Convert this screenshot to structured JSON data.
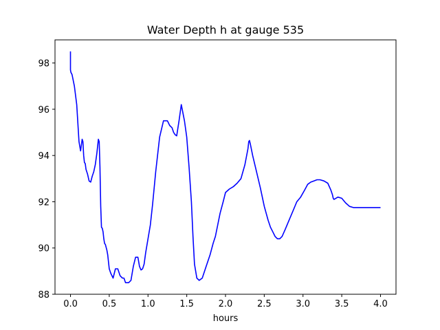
{
  "chart_data": {
    "type": "line",
    "title": "Water Depth h at gauge 535",
    "xlabel": "hours",
    "ylabel": "",
    "xlim": [
      -0.2,
      4.2
    ],
    "ylim": [
      88,
      99
    ],
    "xticks": [
      0.0,
      0.5,
      1.0,
      1.5,
      2.0,
      2.5,
      3.0,
      3.5,
      4.0
    ],
    "xtick_labels": [
      "0.0",
      "0.5",
      "1.0",
      "1.5",
      "2.0",
      "2.5",
      "3.0",
      "3.5",
      "4.0"
    ],
    "yticks": [
      88,
      90,
      92,
      94,
      96,
      98
    ],
    "ytick_labels": [
      "88",
      "90",
      "92",
      "94",
      "96",
      "98"
    ],
    "grid": false,
    "series": [
      {
        "color": "#0000ff",
        "x": [
          0.0,
          0.0,
          0.005,
          0.02,
          0.05,
          0.08,
          0.11,
          0.13,
          0.15,
          0.16,
          0.17,
          0.18,
          0.19,
          0.2,
          0.21,
          0.22,
          0.24,
          0.26,
          0.28,
          0.3,
          0.32,
          0.34,
          0.36,
          0.37,
          0.38,
          0.39,
          0.4,
          0.41,
          0.42,
          0.43,
          0.44,
          0.45,
          0.47,
          0.48,
          0.49,
          0.5,
          0.52,
          0.55,
          0.58,
          0.61,
          0.64,
          0.67,
          0.69,
          0.71,
          0.73,
          0.75,
          0.78,
          0.81,
          0.84,
          0.87,
          0.89,
          0.91,
          0.93,
          0.95,
          0.97,
          1.0,
          1.03,
          1.06,
          1.1,
          1.15,
          1.2,
          1.25,
          1.28,
          1.31,
          1.33,
          1.35,
          1.37,
          1.4,
          1.43,
          1.47,
          1.5,
          1.53,
          1.56,
          1.58,
          1.6,
          1.63,
          1.66,
          1.7,
          1.75,
          1.8,
          1.84,
          1.87,
          1.9,
          1.93,
          1.97,
          2.0,
          2.05,
          2.1,
          2.15,
          2.2,
          2.25,
          2.29,
          2.3,
          2.31,
          2.32,
          2.35,
          2.4,
          2.45,
          2.5,
          2.55,
          2.58,
          2.61,
          2.64,
          2.67,
          2.7,
          2.73,
          2.77,
          2.82,
          2.87,
          2.92,
          2.97,
          3.02,
          3.06,
          3.1,
          3.14,
          3.18,
          3.22,
          3.27,
          3.32,
          3.36,
          3.38,
          3.39,
          3.4,
          3.45,
          3.5,
          3.55,
          3.6,
          3.65,
          3.7,
          3.75,
          3.8,
          3.85,
          3.87,
          3.875,
          3.88,
          3.9,
          3.95,
          3.98,
          4.0
        ],
        "y": [
          98.5,
          97.7,
          97.6,
          97.5,
          97.0,
          96.2,
          94.6,
          94.2,
          94.7,
          94.6,
          94.0,
          93.7,
          93.65,
          93.4,
          93.3,
          93.2,
          92.9,
          92.85,
          93.1,
          93.3,
          93.6,
          94.1,
          94.7,
          94.6,
          93.5,
          91.8,
          90.9,
          90.85,
          90.7,
          90.4,
          90.2,
          90.15,
          89.9,
          89.7,
          89.4,
          89.1,
          88.9,
          88.7,
          89.1,
          89.1,
          88.8,
          88.7,
          88.7,
          88.5,
          88.5,
          88.5,
          88.6,
          89.2,
          89.6,
          89.6,
          89.2,
          89.05,
          89.1,
          89.3,
          89.8,
          90.4,
          91.0,
          91.9,
          93.3,
          94.8,
          95.5,
          95.5,
          95.3,
          95.2,
          95.0,
          94.9,
          94.85,
          95.5,
          96.2,
          95.5,
          94.8,
          93.5,
          92.0,
          90.5,
          89.3,
          88.7,
          88.6,
          88.7,
          89.2,
          89.7,
          90.2,
          90.5,
          91.0,
          91.5,
          92.0,
          92.4,
          92.55,
          92.65,
          92.8,
          93.0,
          93.6,
          94.3,
          94.6,
          94.65,
          94.5,
          94.0,
          93.3,
          92.6,
          91.8,
          91.2,
          90.9,
          90.7,
          90.5,
          90.4,
          90.4,
          90.5,
          90.8,
          91.2,
          91.6,
          92.0,
          92.2,
          92.5,
          92.75,
          92.85,
          92.9,
          92.95,
          92.95,
          92.9,
          92.8,
          92.5,
          92.3,
          92.15,
          92.1,
          92.2,
          92.15,
          91.95,
          91.8,
          91.75,
          91.75,
          91.75,
          91.75,
          91.75,
          91.75,
          91.75,
          91.75,
          91.75,
          91.75,
          91.75,
          91.75
        ]
      }
    ]
  }
}
